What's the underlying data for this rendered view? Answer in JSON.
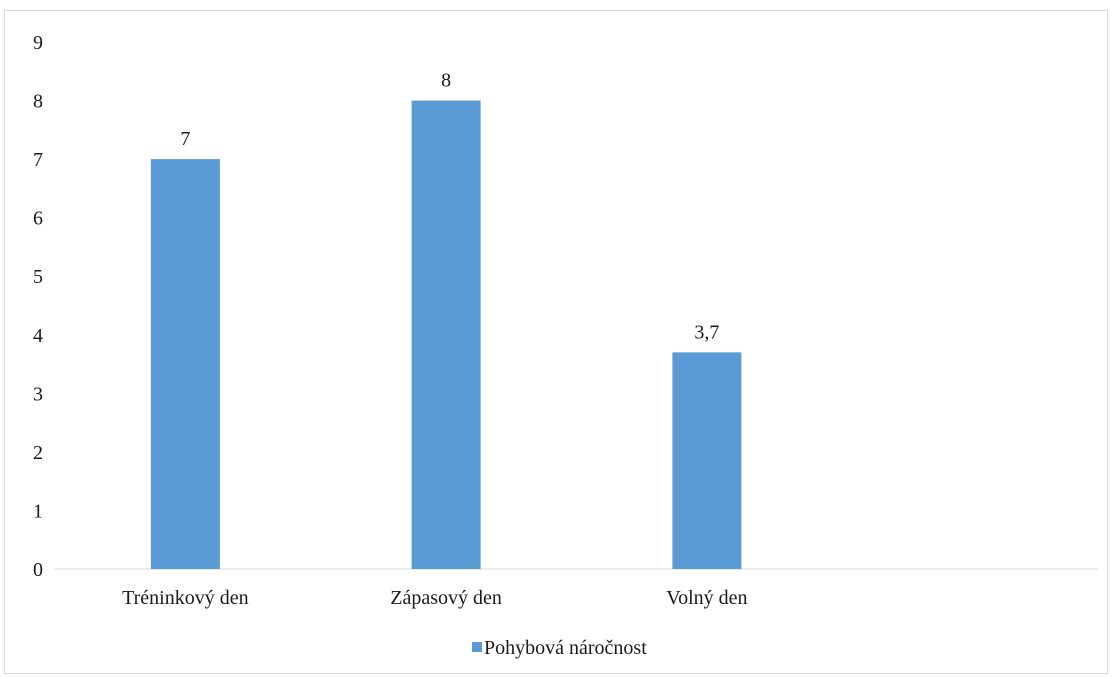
{
  "chart_data": {
    "type": "bar",
    "categories": [
      "Tréninkový den",
      "Zápasový den",
      "Volný den",
      ""
    ],
    "series": [
      {
        "name": "Pohybová náročnost",
        "values": [
          7,
          8,
          3.7,
          null
        ],
        "labels": [
          "7",
          "8",
          "3,7",
          ""
        ],
        "color": "#5b9bd5"
      }
    ],
    "ylim": [
      0,
      9
    ],
    "yticks": [
      "0",
      "1",
      "2",
      "3",
      "4",
      "5",
      "6",
      "7",
      "8",
      "9"
    ],
    "title": "",
    "xlabel": "",
    "ylabel": "",
    "grid": false,
    "legend_position": "bottom"
  }
}
